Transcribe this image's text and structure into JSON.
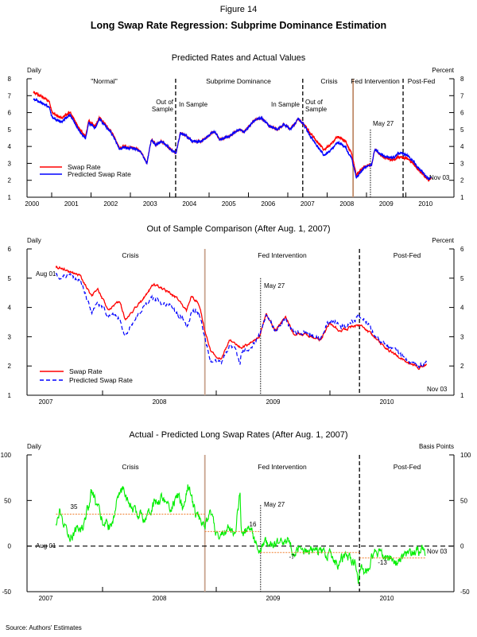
{
  "figure": {
    "number": "Figure 14",
    "title": "Long Swap Rate Regression: Subprime Dominance Estimation",
    "source": "Source: Authors' Estimates"
  },
  "chart_data": [
    {
      "type": "line",
      "title": "Predicted Rates and Actual Values",
      "ylabel_left": "Daily",
      "ylabel_right": "Percent",
      "x_unit": "year",
      "ylim": [
        1,
        8
      ],
      "yticks": [
        "1",
        "2",
        "3",
        "4",
        "5",
        "6",
        "7",
        "8"
      ],
      "xticks": [
        "2000",
        "2001",
        "2002",
        "2003",
        "2004",
        "2005",
        "2006",
        "2007",
        "2008",
        "2009",
        "2010"
      ],
      "grid": false,
      "legend": "bottom-left",
      "periods": [
        "\"Normal\"",
        "Subprime Dominance",
        "Crisis",
        "Fed Intervention",
        "Post-Fed"
      ],
      "annotations": [
        "Out of",
        "Sample",
        "In Sample",
        "In Sample",
        "Out of",
        "Sample",
        "May 27",
        "Nov 03"
      ],
      "event_lines": [
        {
          "t": 2004.15,
          "style": "dashed",
          "color": "#000000"
        },
        {
          "t": 2007.38,
          "style": "dashed",
          "color": "#000000"
        },
        {
          "t": 2008.66,
          "style": "solid",
          "color": "#c08a68"
        },
        {
          "t": 2009.1,
          "style": "dotted",
          "color": "#000000",
          "from_value": 5
        },
        {
          "t": 2009.93,
          "style": "dashed",
          "color": "#000000"
        }
      ],
      "series": [
        {
          "name": "Swap Rate",
          "color": "#ff0000",
          "style": "solid",
          "points": [
            [
              2000.54,
              7.2
            ],
            [
              2000.93,
              6.7
            ],
            [
              2001.01,
              6.0
            ],
            [
              2001.24,
              5.7
            ],
            [
              2001.47,
              6.0
            ],
            [
              2001.71,
              5.0
            ],
            [
              2001.86,
              4.6
            ],
            [
              2001.94,
              5.5
            ],
            [
              2002.1,
              5.2
            ],
            [
              2002.21,
              5.7
            ],
            [
              2002.37,
              5.3
            ],
            [
              2002.56,
              4.7
            ],
            [
              2002.72,
              3.9
            ],
            [
              2002.87,
              4.0
            ],
            [
              2003.11,
              3.9
            ],
            [
              2003.26,
              3.7
            ],
            [
              2003.42,
              3.0
            ],
            [
              2003.53,
              4.4
            ],
            [
              2003.65,
              4.1
            ],
            [
              2003.8,
              4.3
            ],
            [
              2004.04,
              3.8
            ],
            [
              2004.16,
              3.6
            ],
            [
              2004.27,
              4.8
            ],
            [
              2004.43,
              4.6
            ],
            [
              2004.58,
              4.3
            ],
            [
              2004.81,
              4.3
            ],
            [
              2005.13,
              4.9
            ],
            [
              2005.28,
              4.4
            ],
            [
              2005.52,
              4.6
            ],
            [
              2005.75,
              5.0
            ],
            [
              2005.9,
              4.9
            ],
            [
              2006.14,
              5.5
            ],
            [
              2006.33,
              5.7
            ],
            [
              2006.53,
              5.2
            ],
            [
              2006.72,
              5.0
            ],
            [
              2006.91,
              5.3
            ],
            [
              2007.07,
              5.0
            ],
            [
              2007.26,
              5.6
            ],
            [
              2007.38,
              5.4
            ],
            [
              2007.54,
              4.9
            ],
            [
              2007.77,
              4.2
            ],
            [
              2007.92,
              3.8
            ],
            [
              2008.08,
              4.1
            ],
            [
              2008.27,
              4.6
            ],
            [
              2008.47,
              4.3
            ],
            [
              2008.62,
              3.6
            ],
            [
              2008.74,
              2.3
            ],
            [
              2008.93,
              2.8
            ],
            [
              2009.13,
              2.9
            ],
            [
              2009.21,
              3.8
            ],
            [
              2009.48,
              3.3
            ],
            [
              2009.71,
              3.2
            ],
            [
              2009.79,
              3.4
            ],
            [
              2010.02,
              3.3
            ],
            [
              2010.18,
              3.0
            ],
            [
              2010.41,
              2.4
            ],
            [
              2010.57,
              2.0
            ],
            [
              2010.64,
              2.1
            ]
          ]
        },
        {
          "name": "Predicted Swap Rate",
          "color": "#0000ff",
          "style": "solid",
          "actual_minus_predicted_bp": [
            [
              2000.54,
              40
            ],
            [
              2000.9,
              35
            ],
            [
              2001.0,
              30
            ],
            [
              2001.5,
              15
            ],
            [
              2002.0,
              10
            ],
            [
              2002.7,
              5
            ],
            [
              2003.8,
              0
            ],
            [
              2007.38,
              0
            ],
            [
              2007.6,
              20
            ],
            [
              2008.0,
              35
            ],
            [
              2008.55,
              35
            ],
            [
              2008.74,
              16
            ],
            [
              2009.1,
              0
            ],
            [
              2009.5,
              -7
            ],
            [
              2009.93,
              -25
            ],
            [
              2010.1,
              -15
            ],
            [
              2010.64,
              -5
            ]
          ]
        }
      ]
    },
    {
      "type": "line",
      "title": "Out of Sample Comparison (After Aug. 1, 2007)",
      "ylabel_left": "Daily",
      "ylabel_right": "Percent",
      "x_unit": "year",
      "ylim": [
        1,
        6
      ],
      "yticks": [
        "1",
        "2",
        "3",
        "4",
        "5",
        "6"
      ],
      "xticks": [
        "2007",
        "2008",
        "2009",
        "2010"
      ],
      "grid": false,
      "legend": "bottom-left",
      "periods": [
        "Crisis",
        "Fed Intervention",
        "Post-Fed"
      ],
      "annotations": [
        "Aug 01",
        "May 27",
        "Nov 03"
      ],
      "event_lines": [
        {
          "t": 2008.9,
          "style": "solid",
          "color": "#c8a48e"
        },
        {
          "t": 2009.39,
          "style": "dotted",
          "color": "#000000",
          "from_value": 5
        },
        {
          "t": 2010.26,
          "style": "dashed",
          "color": "#000000"
        }
      ],
      "series": [
        {
          "name": "Swap Rate",
          "color": "#ff0000",
          "style": "solid",
          "points": [
            [
              2007.59,
              5.4
            ],
            [
              2007.8,
              5.1
            ],
            [
              2007.9,
              4.4
            ],
            [
              2007.96,
              4.6
            ],
            [
              2008.05,
              3.9
            ],
            [
              2008.15,
              4.2
            ],
            [
              2008.2,
              3.6
            ],
            [
              2008.34,
              4.2
            ],
            [
              2008.45,
              4.8
            ],
            [
              2008.55,
              4.6
            ],
            [
              2008.66,
              4.3
            ],
            [
              2008.74,
              3.9
            ],
            [
              2008.78,
              4.4
            ],
            [
              2008.85,
              4.1
            ],
            [
              2008.9,
              3.2
            ],
            [
              2008.95,
              2.5
            ],
            [
              2009.04,
              2.2
            ],
            [
              2009.12,
              2.9
            ],
            [
              2009.22,
              2.6
            ],
            [
              2009.38,
              3.0
            ],
            [
              2009.44,
              3.8
            ],
            [
              2009.52,
              3.2
            ],
            [
              2009.61,
              3.7
            ],
            [
              2009.68,
              3.1
            ],
            [
              2009.77,
              3.1
            ],
            [
              2009.92,
              2.9
            ],
            [
              2010.0,
              3.5
            ],
            [
              2010.08,
              3.2
            ],
            [
              2010.26,
              3.4
            ],
            [
              2010.33,
              3.2
            ],
            [
              2010.49,
              2.6
            ],
            [
              2010.65,
              2.2
            ],
            [
              2010.78,
              1.95
            ],
            [
              2010.85,
              2.05
            ]
          ]
        },
        {
          "name": "Predicted Swap Rate",
          "color": "#0000ff",
          "style": "dashed",
          "derived_from": "Swap Rate minus the Actual - Predicted series below"
        }
      ]
    },
    {
      "type": "line",
      "title": "Actual - Predicted Long Swap Rates (After Aug. 1, 2007)",
      "ylabel_left": "Daily",
      "ylabel_right": "Basis Points",
      "x_unit": "year",
      "ylim": [
        -50,
        100
      ],
      "yticks": [
        "-50",
        "0",
        "50",
        "100"
      ],
      "xticks": [
        "2007",
        "2008",
        "2009",
        "2010"
      ],
      "grid": false,
      "periods": [
        "Crisis",
        "Fed Intervention",
        "Post-Fed"
      ],
      "annotations": [
        "May 27",
        "Aug 01",
        "Nov 03"
      ],
      "event_lines": [
        {
          "t": 2008.9,
          "style": "solid",
          "color": "#c8a48e"
        },
        {
          "t": 2009.39,
          "style": "dotted",
          "color": "#000000",
          "from_value": 45
        },
        {
          "t": 2010.26,
          "style": "dashed",
          "color": "#000000"
        }
      ],
      "zero_line": {
        "value": 0,
        "style": "dashed"
      },
      "period_means": [
        {
          "label": "35",
          "value": 35,
          "start": 2007.59,
          "end": 2008.9
        },
        {
          "label": "16",
          "value": 16,
          "start": 2008.9,
          "end": 2009.39
        },
        {
          "label": "-7",
          "value": -7,
          "start": 2009.39,
          "end": 2010.26
        },
        {
          "label": "-13",
          "value": -13,
          "start": 2010.26,
          "end": 2010.84
        }
      ],
      "mean_color": "#f08030",
      "series": [
        {
          "color": "#00ee00",
          "style": "solid",
          "points": [
            [
              2007.59,
              20
            ],
            [
              2007.62,
              38
            ],
            [
              2007.64,
              25
            ],
            [
              2007.72,
              10
            ],
            [
              2007.77,
              18
            ],
            [
              2007.82,
              20
            ],
            [
              2007.88,
              45
            ],
            [
              2007.9,
              60
            ],
            [
              2007.99,
              30
            ],
            [
              2008.07,
              20
            ],
            [
              2008.12,
              45
            ],
            [
              2008.19,
              65
            ],
            [
              2008.23,
              45
            ],
            [
              2008.31,
              35
            ],
            [
              2008.36,
              30
            ],
            [
              2008.44,
              45
            ],
            [
              2008.52,
              55
            ],
            [
              2008.59,
              40
            ],
            [
              2008.66,
              55
            ],
            [
              2008.71,
              40
            ],
            [
              2008.75,
              65
            ],
            [
              2008.82,
              35
            ],
            [
              2008.9,
              25
            ],
            [
              2008.95,
              35
            ],
            [
              2009.01,
              10
            ],
            [
              2009.09,
              20
            ],
            [
              2009.17,
              15
            ],
            [
              2009.21,
              60
            ],
            [
              2009.22,
              15
            ],
            [
              2009.3,
              20
            ],
            [
              2009.38,
              -10
            ],
            [
              2009.44,
              5
            ],
            [
              2009.52,
              0
            ],
            [
              2009.63,
              5
            ],
            [
              2009.68,
              -5
            ],
            [
              2009.79,
              -5
            ],
            [
              2009.9,
              -5
            ],
            [
              2010.0,
              -10
            ],
            [
              2010.06,
              -20
            ],
            [
              2010.14,
              -10
            ],
            [
              2010.22,
              -18
            ],
            [
              2010.25,
              -35
            ],
            [
              2010.27,
              -25
            ],
            [
              2010.32,
              -30
            ],
            [
              2010.38,
              -10
            ],
            [
              2010.43,
              -5
            ],
            [
              2010.57,
              -20
            ],
            [
              2010.65,
              -10
            ],
            [
              2010.76,
              -5
            ],
            [
              2010.84,
              -5
            ]
          ]
        }
      ]
    }
  ]
}
